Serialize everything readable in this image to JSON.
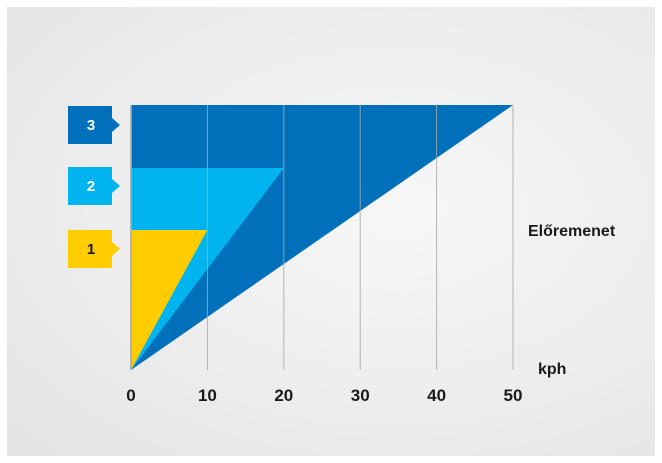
{
  "chart_data": {
    "type": "area",
    "x_unit_label": "kph",
    "direction_label": "Előremenet",
    "x_ticks": [
      0,
      10,
      20,
      30,
      40,
      50
    ],
    "xlim": [
      0,
      50
    ],
    "levels": 3,
    "gears": [
      {
        "label": "3",
        "level": 3,
        "max_speed": 50,
        "color": "#0070bb",
        "text_color": "#ffffff"
      },
      {
        "label": "2",
        "level": 2,
        "max_speed": 20,
        "color": "#00b5ef",
        "text_color": "#ffffff"
      },
      {
        "label": "1",
        "level": 1,
        "max_speed": 10,
        "color": "#ffcc00",
        "text_color": "#1a1a1a"
      }
    ],
    "grid_lines": true,
    "grid_color": "#a9a9a9",
    "background_color": "#ececec"
  }
}
